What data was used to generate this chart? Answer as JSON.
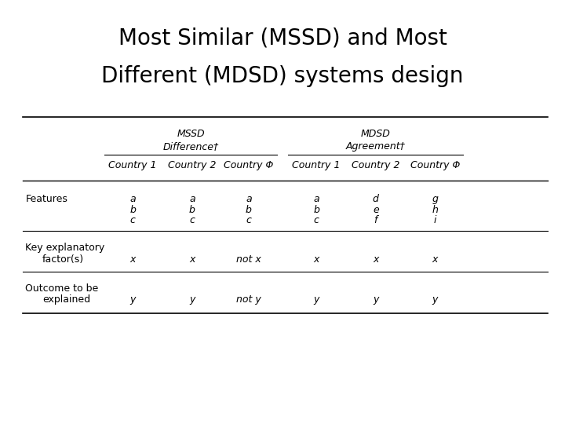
{
  "title_line1": "Most Similar (MSSD) and Most",
  "title_line2": "Different (MDSD) systems design",
  "bg_color": "#ffffff",
  "text_color": "#000000",
  "mssd_label": "MSSD",
  "mssd_sublabel": "Difference†",
  "mdsd_label": "MDSD",
  "mdsd_sublabel": "Agreement†",
  "col_headers": [
    "Country 1",
    "Country 2",
    "Country Φ",
    "Country 1",
    "Country 2",
    "Country Φ"
  ],
  "features_data": [
    [
      "a",
      "a",
      "a",
      "a",
      "d",
      "g"
    ],
    [
      "b",
      "b",
      "b",
      "b",
      "e",
      "h"
    ],
    [
      "c",
      "c",
      "c",
      "c",
      "f",
      "i"
    ]
  ],
  "key_exp_data": [
    "x",
    "x",
    "not x",
    "x",
    "x",
    "x"
  ],
  "outcome_data": [
    "y",
    "y",
    "not y",
    "y",
    "y",
    "y"
  ],
  "title_fontsize": 20,
  "header_fontsize": 9,
  "body_fontsize": 9
}
